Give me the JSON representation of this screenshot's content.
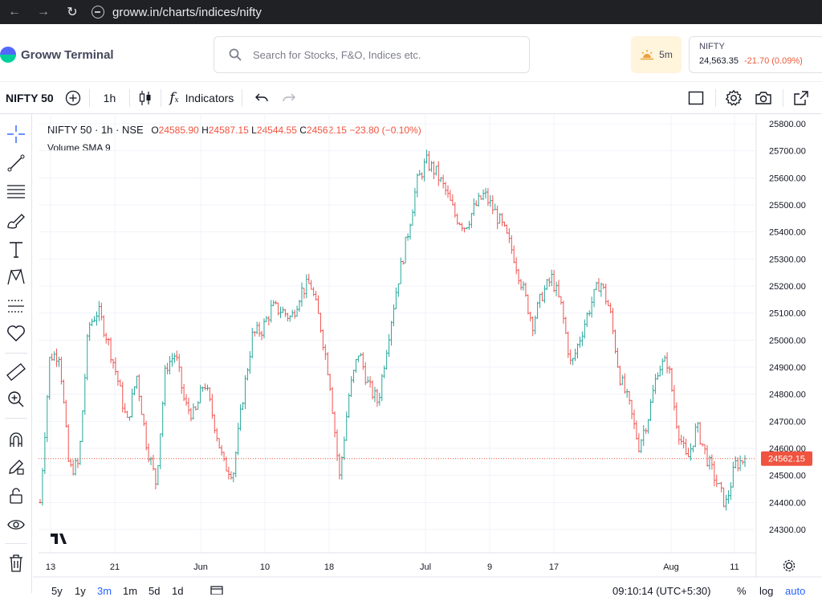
{
  "browser": {
    "url": "groww.in/charts/indices/nifty"
  },
  "app": {
    "brand": "Groww Terminal",
    "search_placeholder": "Search for Stocks, F&O, Indices etc.",
    "timer_label": "5m",
    "ticker": {
      "symbol": "NIFTY",
      "price": "24,563.35",
      "change": "-21.70 (0.09%)"
    }
  },
  "toolbar": {
    "symbol": "NIFTY 50",
    "interval": "1h",
    "indicators_label": "Indicators"
  },
  "legend": {
    "title": "NIFTY 50 · 1h · NSE",
    "o_label": "O",
    "o_value": "24585.90",
    "h_label": "H",
    "h_value": "24587.15",
    "l_label": "L",
    "l_value": "24544.55",
    "c_label": "C",
    "c_value": "24562.15",
    "change": "−23.80 (−0.10%)",
    "indicator": "Volume SMA 9"
  },
  "bottombar": {
    "ranges": [
      "5y",
      "1y",
      "3m",
      "1m",
      "5d",
      "1d"
    ],
    "active_range": "3m",
    "time": "09:10:14 (UTC+5:30)",
    "percent": "%",
    "log": "log",
    "auto": "auto"
  },
  "colors": {
    "up": "#26a69a",
    "down": "#ef5350",
    "last_price_bg": "#f0533f",
    "brand": "#00d09c"
  },
  "chart_data": {
    "type": "candlestick",
    "ylim": [
      24250,
      25850
    ],
    "yticks": [
      25800,
      25700,
      25600,
      25500,
      25400,
      25300,
      25200,
      25100,
      25000,
      24900,
      24800,
      24700,
      24600,
      24500,
      24400,
      24300
    ],
    "ytick_labels": [
      "25800.00",
      "25700.00",
      "25600.00",
      "25500.00",
      "25400.00",
      "25300.00",
      "25200.00",
      "25100.00",
      "25000.00",
      "24900.00",
      "24800.00",
      "24700.00",
      "24600.00",
      "24500.00",
      "24400.00",
      "24300.00"
    ],
    "xticks": [
      "13",
      "21",
      "Jun",
      "10",
      "18",
      "Jul",
      "9",
      "17",
      "Aug",
      "11"
    ],
    "last_price": 24562.15,
    "last_price_label": "24562.15",
    "path": [
      24400,
      24940,
      24950,
      24520,
      24540,
      25050,
      25110,
      25000,
      24860,
      24690,
      24870,
      24620,
      24470,
      24900,
      24950,
      24760,
      24720,
      24850,
      24700,
      24540,
      24510,
      24790,
      25020,
      25040,
      25120,
      25110,
      25080,
      25180,
      25210,
      25060,
      24850,
      24490,
      24800,
      24960,
      24830,
      24770,
      25000,
      25210,
      25380,
      25580,
      25660,
      25620,
      25550,
      25460,
      25420,
      25490,
      25540,
      25480,
      25410,
      25320,
      25190,
      25060,
      25170,
      25230,
      25120,
      24900,
      25020,
      25130,
      25220,
      25110,
      24870,
      24760,
      24610,
      24720,
      24900,
      24920,
      24680,
      24550,
      24680,
      24570,
      24480,
      24390,
      24540,
      24562
    ]
  }
}
